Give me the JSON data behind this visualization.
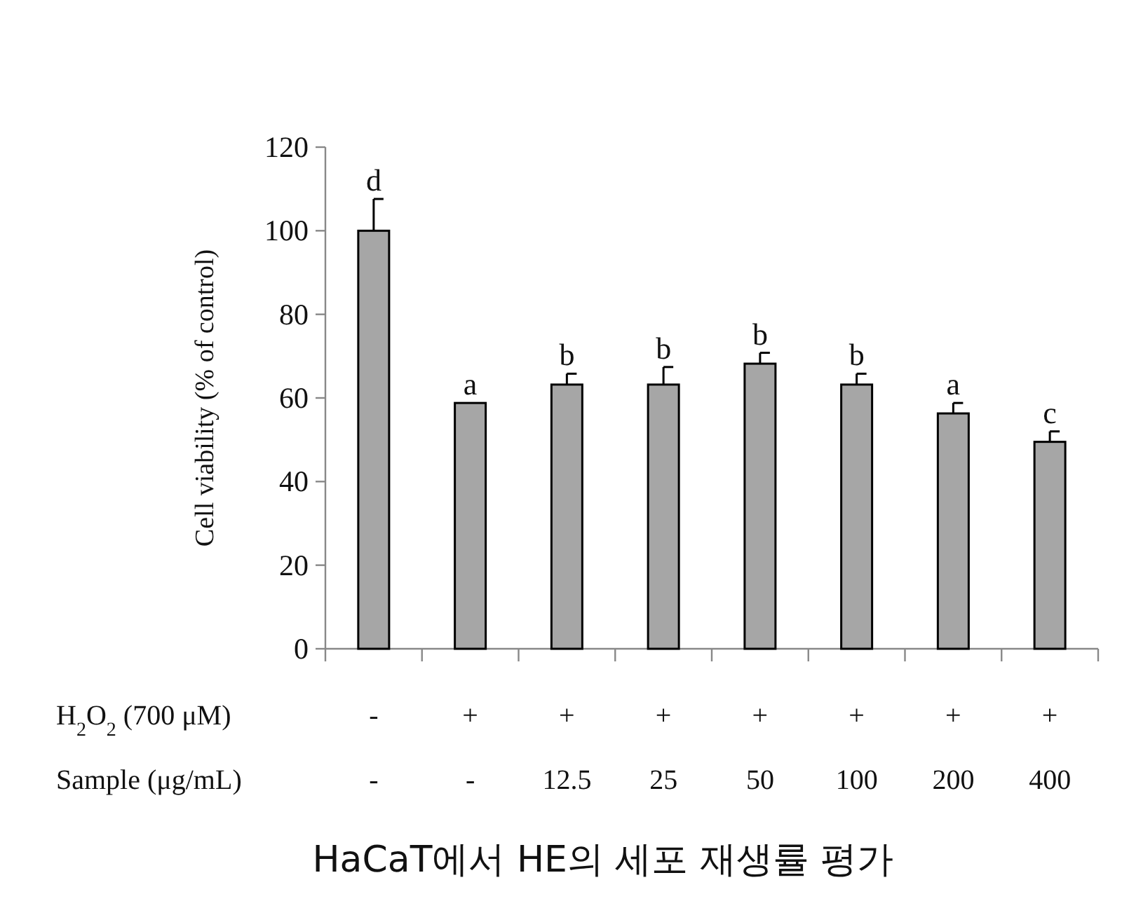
{
  "chart_data": {
    "type": "bar",
    "title": "HaCaT에서 HE의 세포 재생률 평가",
    "ylabel": "Cell viability  (% of control)",
    "xlabel": "Sample  (μg/mL)",
    "categories": [
      "-",
      "-",
      "12.5",
      "25",
      "50",
      "100",
      "200",
      "400"
    ],
    "values": [
      100,
      58.8,
      63.2,
      63.2,
      68.2,
      63.2,
      56.3,
      49.5
    ],
    "errors": [
      7.6,
      null,
      2.6,
      4.2,
      2.6,
      2.6,
      2.5,
      2.5
    ],
    "value_labels": [
      "d",
      "a",
      "b",
      "b",
      "b",
      "b",
      "a",
      "c"
    ],
    "annotations": [
      "H$_{2}$O$_{2}$ (700 μM)",
      "-",
      "+",
      "+",
      "+",
      "+",
      "+",
      "+",
      "+"
    ],
    "color": "#a6a6a6",
    "ylim": [
      0,
      120
    ],
    "yticks": [
      0,
      20,
      40,
      60,
      80,
      100,
      120
    ],
    "grid": false
  }
}
